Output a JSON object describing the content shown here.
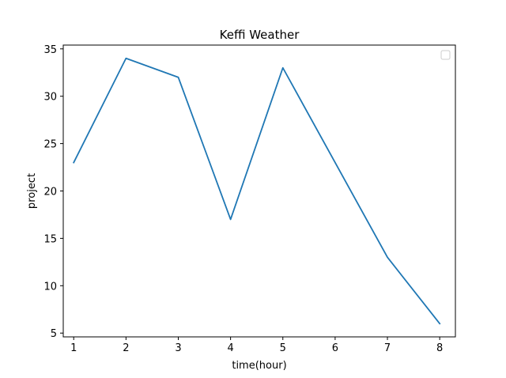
{
  "chart_data": {
    "type": "line",
    "title": "Keffi Weather",
    "xlabel": "time(hour)",
    "ylabel": "project",
    "x": [
      1,
      2,
      3,
      4,
      5,
      6,
      7,
      8
    ],
    "series": [
      {
        "values": [
          23,
          34,
          32,
          17,
          33,
          23,
          13,
          6
        ],
        "color": "#1f77b4"
      }
    ],
    "xlim": [
      0.8,
      8.3
    ],
    "ylim": [
      4.6,
      35.4
    ],
    "xticks": [
      1,
      2,
      3,
      4,
      5,
      6,
      7,
      8
    ],
    "yticks": [
      5,
      10,
      15,
      20,
      25,
      30,
      35
    ],
    "grid": false,
    "legend": {
      "placement": "top-right",
      "entries": []
    }
  }
}
